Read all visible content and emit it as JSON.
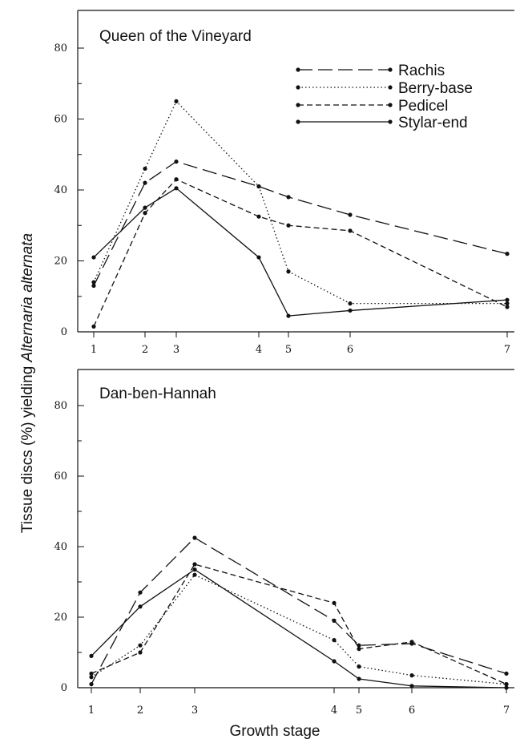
{
  "chart_data": [
    {
      "type": "line",
      "title": "Queen of the Vineyard",
      "x": [
        1,
        2,
        3,
        4,
        5,
        6,
        7
      ],
      "ylim": [
        0,
        90
      ],
      "yticks": [
        0,
        20,
        40,
        60,
        80
      ],
      "xticks": [
        1,
        2,
        3,
        4,
        5,
        6,
        7
      ],
      "legend_position": "top-right",
      "series": [
        {
          "name": "Rachis",
          "style": "long-dash",
          "values": [
            13,
            42,
            48,
            41,
            38,
            33,
            22
          ]
        },
        {
          "name": "Berry-base",
          "style": "dotted",
          "values": [
            14,
            46,
            65,
            41,
            17,
            8,
            8
          ]
        },
        {
          "name": "Pedicel",
          "style": "short-dash",
          "values": [
            1.5,
            33.5,
            43,
            32.5,
            30,
            28.5,
            7
          ]
        },
        {
          "name": "Stylar-end",
          "style": "solid",
          "values": [
            21,
            35,
            40.5,
            21,
            4.5,
            6,
            9
          ]
        }
      ]
    },
    {
      "type": "line",
      "title": "Dan-ben-Hannah",
      "x": [
        1,
        2,
        3,
        4,
        5,
        6,
        7
      ],
      "ylim": [
        0,
        90
      ],
      "yticks": [
        0,
        20,
        40,
        60,
        80
      ],
      "xticks": [
        1,
        2,
        3,
        4,
        5,
        6,
        7
      ],
      "series": [
        {
          "name": "Rachis",
          "style": "long-dash",
          "values": [
            1,
            27,
            42.5,
            19,
            12,
            12.5,
            4
          ]
        },
        {
          "name": "Berry-base",
          "style": "dotted",
          "values": [
            3,
            12,
            32,
            13.5,
            6,
            3.5,
            1
          ]
        },
        {
          "name": "Pedicel",
          "style": "short-dash",
          "values": [
            4,
            10,
            35,
            24,
            11,
            13,
            1
          ]
        },
        {
          "name": "Stylar-end",
          "style": "solid",
          "values": [
            9,
            23,
            33.5,
            7.5,
            2.5,
            0.5,
            0
          ]
        }
      ]
    }
  ],
  "y_axis_label_plain": "Tissue discs (%) yielding ",
  "y_axis_label_italic": "Alternaria alternata",
  "x_axis_label": "Growth stage"
}
